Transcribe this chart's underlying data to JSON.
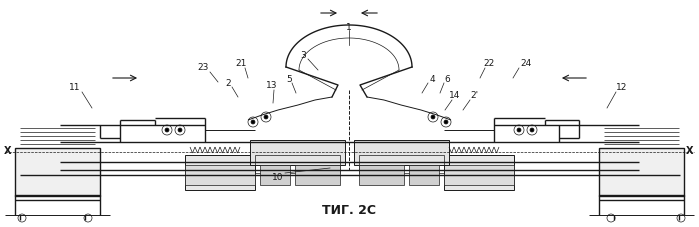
{
  "fig_caption": "ΤИГ. 2C",
  "bg_color": "#ffffff",
  "line_color": "#1a1a1a",
  "figsize": [
    6.99,
    2.27
  ],
  "dpi": 100,
  "label_fs": 6.5,
  "caption_fs": 9
}
